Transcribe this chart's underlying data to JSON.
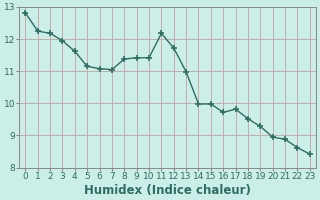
{
  "x": [
    0,
    1,
    2,
    3,
    4,
    5,
    6,
    7,
    8,
    9,
    10,
    11,
    12,
    13,
    14,
    15,
    16,
    17,
    18,
    19,
    20,
    21,
    22,
    23
  ],
  "y": [
    12.82,
    12.25,
    12.18,
    11.95,
    11.62,
    11.15,
    11.08,
    11.05,
    11.38,
    11.42,
    11.42,
    12.18,
    11.72,
    10.98,
    9.98,
    9.98,
    9.72,
    9.82,
    9.52,
    9.28,
    8.95,
    8.88,
    8.62,
    8.42
  ],
  "line_color": "#2e6e62",
  "marker": "+",
  "marker_size": 4,
  "marker_lw": 1.2,
  "line_width": 1.0,
  "bg_color": "#cceee8",
  "grid_color": "#c8aaaa",
  "xlabel": "Humidex (Indice chaleur)",
  "ylim": [
    8,
    13
  ],
  "xlim": [
    -0.5,
    23.5
  ],
  "yticks": [
    8,
    9,
    10,
    11,
    12,
    13
  ],
  "xticks": [
    0,
    1,
    2,
    3,
    4,
    5,
    6,
    7,
    8,
    9,
    10,
    11,
    12,
    13,
    14,
    15,
    16,
    17,
    18,
    19,
    20,
    21,
    22,
    23
  ],
  "tick_fontsize": 6.5,
  "xlabel_fontsize": 8.5,
  "spine_color": "#888888"
}
